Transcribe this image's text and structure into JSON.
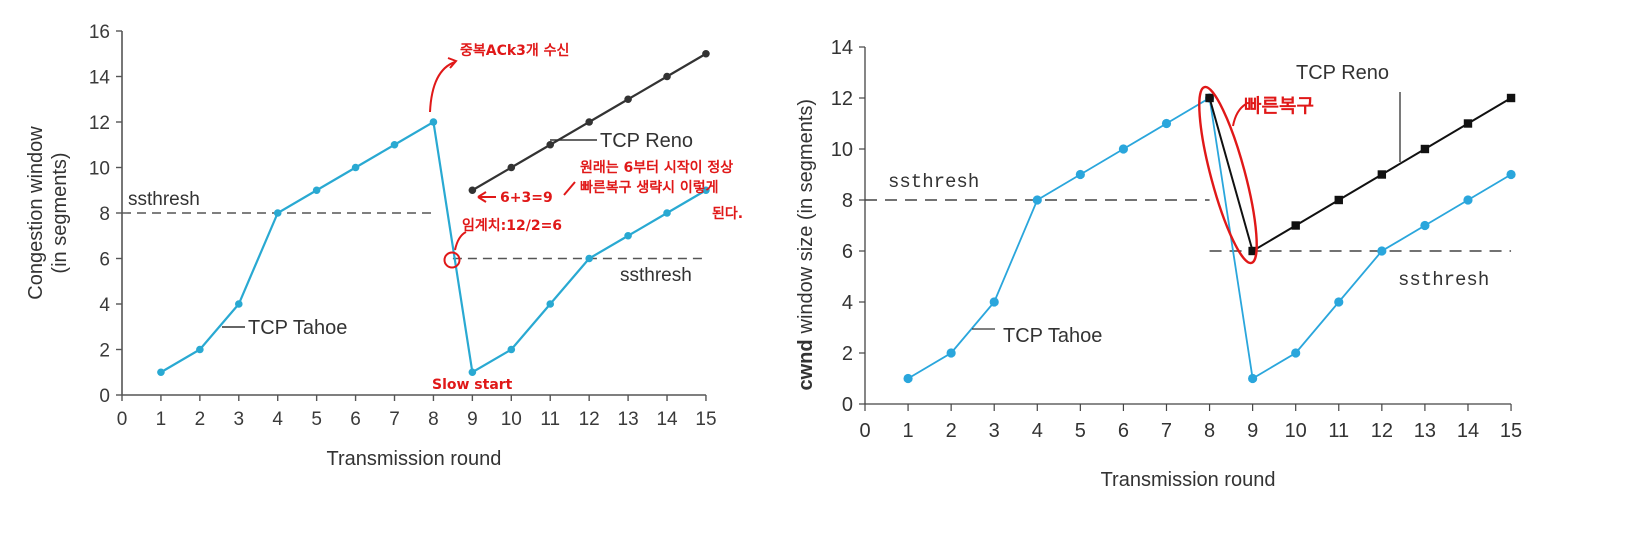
{
  "chart_data": [
    {
      "type": "line",
      "xlabel": "Transmission round",
      "ylabel_line1": "Congestion window",
      "ylabel_line2": "(in segments)",
      "xlim": [
        0,
        15
      ],
      "ylim": [
        0,
        16
      ],
      "xticks": [
        "0",
        "1",
        "2",
        "3",
        "4",
        "5",
        "6",
        "7",
        "8",
        "9",
        "10",
        "11",
        "12",
        "13",
        "14",
        "15"
      ],
      "yticks": [
        "0",
        "2",
        "4",
        "6",
        "8",
        "10",
        "12",
        "14",
        "16"
      ],
      "series": [
        {
          "name": "TCP Tahoe",
          "color": "#29a9d2",
          "x": [
            1,
            2,
            3,
            4,
            5,
            6,
            7,
            8,
            9,
            10,
            11,
            12,
            13,
            14,
            15
          ],
          "y": [
            1,
            2,
            4,
            8,
            9,
            10,
            11,
            12,
            1,
            2,
            4,
            6,
            7,
            8,
            9
          ]
        },
        {
          "name": "TCP Reno",
          "color": "#333333",
          "x": [
            9,
            10,
            11,
            12,
            13,
            14,
            15
          ],
          "y": [
            9,
            10,
            11,
            12,
            13,
            14,
            15
          ]
        }
      ],
      "thresholds": [
        {
          "label": "ssthresh",
          "y": 8,
          "x": [
            0,
            8
          ]
        },
        {
          "label": "ssthresh",
          "y": 6,
          "x": [
            8.5,
            15
          ]
        }
      ],
      "annotations": {
        "triple_ack": "중복ACk3개 수신",
        "reno_eq": "6+3=9",
        "note_line1": "원래는 6부터 시작이 정상",
        "note_line2": "빠른복구 생략시 이렇게",
        "note_line3": "된다.",
        "threshold_calc": "임계치:12/2=6",
        "slow_start": "Slow start"
      }
    },
    {
      "type": "line",
      "xlabel": "Transmission round",
      "ylabel_bold": "cwnd",
      "ylabel_rest": "window size (in segments)",
      "xlim": [
        0,
        15
      ],
      "ylim": [
        0,
        14
      ],
      "xticks": [
        "0",
        "1",
        "2",
        "3",
        "4",
        "5",
        "6",
        "7",
        "8",
        "9",
        "10",
        "11",
        "12",
        "13",
        "14",
        "15"
      ],
      "yticks": [
        "0",
        "2",
        "4",
        "6",
        "8",
        "10",
        "12",
        "14"
      ],
      "series": [
        {
          "name": "TCP Tahoe",
          "color": "#2aa6dc",
          "x": [
            1,
            2,
            3,
            4,
            5,
            6,
            7,
            8,
            9,
            10,
            11,
            12,
            13,
            14,
            15
          ],
          "y": [
            1,
            2,
            4,
            8,
            9,
            10,
            11,
            12,
            1,
            2,
            4,
            6,
            7,
            8,
            9
          ]
        },
        {
          "name": "TCP Reno",
          "color": "#111111",
          "x": [
            8,
            9,
            10,
            11,
            12,
            13,
            14,
            15
          ],
          "y": [
            12,
            6,
            7,
            8,
            9,
            10,
            11,
            12
          ]
        }
      ],
      "thresholds": [
        {
          "label": "ssthresh",
          "y": 8,
          "x": [
            0,
            8
          ]
        },
        {
          "label": "ssthresh",
          "y": 6,
          "x": [
            8,
            15
          ]
        }
      ],
      "annotations": {
        "fast_recovery": "빠른복구"
      }
    }
  ]
}
